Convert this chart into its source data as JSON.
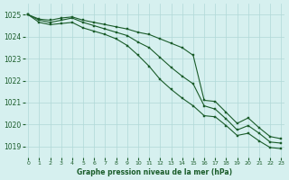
{
  "title": "Graphe pression niveau de la mer (hPa)",
  "background_color": "#d6f0ef",
  "grid_color": "#b0d8d8",
  "line_color": "#1a5c2a",
  "xlim": [
    0,
    23
  ],
  "ylim": [
    1018.5,
    1025.5
  ],
  "yticks": [
    1019,
    1020,
    1021,
    1022,
    1023,
    1024,
    1025
  ],
  "xticks": [
    0,
    1,
    2,
    3,
    4,
    5,
    6,
    7,
    8,
    9,
    10,
    11,
    12,
    13,
    14,
    15,
    16,
    17,
    18,
    19,
    20,
    21,
    22,
    23
  ],
  "series": [
    [
      1025.0,
      1024.8,
      1024.75,
      1024.85,
      1024.9,
      1024.75,
      1024.65,
      1024.55,
      1024.45,
      1024.35,
      1024.2,
      1024.1,
      1023.9,
      1023.7,
      1023.5,
      1023.15,
      1021.1,
      1021.05,
      1020.55,
      1020.05,
      1020.3,
      1019.85,
      1019.45,
      1019.35
    ],
    [
      1025.0,
      1024.75,
      1024.65,
      1024.75,
      1024.85,
      1024.65,
      1024.5,
      1024.35,
      1024.2,
      1024.05,
      1023.75,
      1023.5,
      1023.05,
      1022.6,
      1022.2,
      1021.85,
      1020.85,
      1020.7,
      1020.25,
      1019.75,
      1019.95,
      1019.6,
      1019.2,
      1019.15
    ],
    [
      1025.0,
      1024.65,
      1024.55,
      1024.6,
      1024.65,
      1024.4,
      1024.25,
      1024.1,
      1023.9,
      1023.6,
      1023.15,
      1022.65,
      1022.05,
      1021.6,
      1021.2,
      1020.85,
      1020.4,
      1020.35,
      1019.95,
      1019.5,
      1019.6,
      1019.25,
      1018.95,
      1018.9
    ]
  ]
}
